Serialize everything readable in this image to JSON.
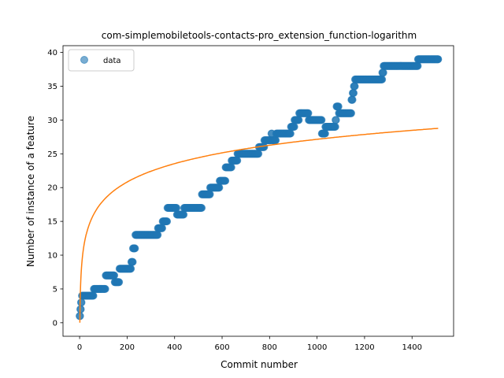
{
  "chart_data": {
    "type": "scatter",
    "title": "com-simplemobiletools-contacts-pro_extension_function-logarithm",
    "xlabel": "Commit number",
    "ylabel": "Number of instance of a feature",
    "xlim": [
      -70,
      1575
    ],
    "ylim": [
      -2,
      41
    ],
    "xticks": [
      0,
      200,
      400,
      600,
      800,
      1000,
      1200,
      1400
    ],
    "yticks": [
      0,
      5,
      10,
      15,
      20,
      25,
      30,
      35,
      40
    ],
    "grid": false,
    "legend": {
      "position": "top-left",
      "entries": [
        "data"
      ]
    },
    "colors": {
      "data": "#1f77b4",
      "fit": "#ff7f0e"
    },
    "series": [
      {
        "name": "data",
        "kind": "scatter",
        "steps": [
          [
            0,
            1
          ],
          [
            3,
            2
          ],
          [
            6,
            3
          ],
          [
            10,
            4
          ],
          [
            60,
            5
          ],
          [
            110,
            7
          ],
          [
            148,
            6
          ],
          [
            168,
            8
          ],
          [
            218,
            9
          ],
          [
            225,
            11
          ],
          [
            235,
            13
          ],
          [
            330,
            14
          ],
          [
            350,
            15
          ],
          [
            370,
            17
          ],
          [
            410,
            16
          ],
          [
            440,
            17
          ],
          [
            515,
            19
          ],
          [
            550,
            20
          ],
          [
            590,
            21
          ],
          [
            615,
            23
          ],
          [
            640,
            24
          ],
          [
            665,
            25
          ],
          [
            755,
            26
          ],
          [
            778,
            27
          ],
          [
            808,
            28
          ],
          [
            812,
            27
          ],
          [
            828,
            28
          ],
          [
            890,
            29
          ],
          [
            905,
            30
          ],
          [
            925,
            31
          ],
          [
            965,
            30
          ],
          [
            1020,
            28
          ],
          [
            1035,
            29
          ],
          [
            1078,
            30
          ],
          [
            1082,
            32
          ],
          [
            1092,
            31
          ],
          [
            1145,
            33
          ],
          [
            1150,
            34
          ],
          [
            1155,
            35
          ],
          [
            1160,
            36
          ],
          [
            1275,
            37
          ],
          [
            1280,
            38
          ],
          [
            1425,
            39
          ],
          [
            1510,
            39
          ]
        ]
      },
      {
        "name": "fit",
        "kind": "line",
        "model": "logarithm",
        "a": 3.93,
        "b": 0.0,
        "x_range": [
          1,
          1510
        ]
      }
    ]
  }
}
